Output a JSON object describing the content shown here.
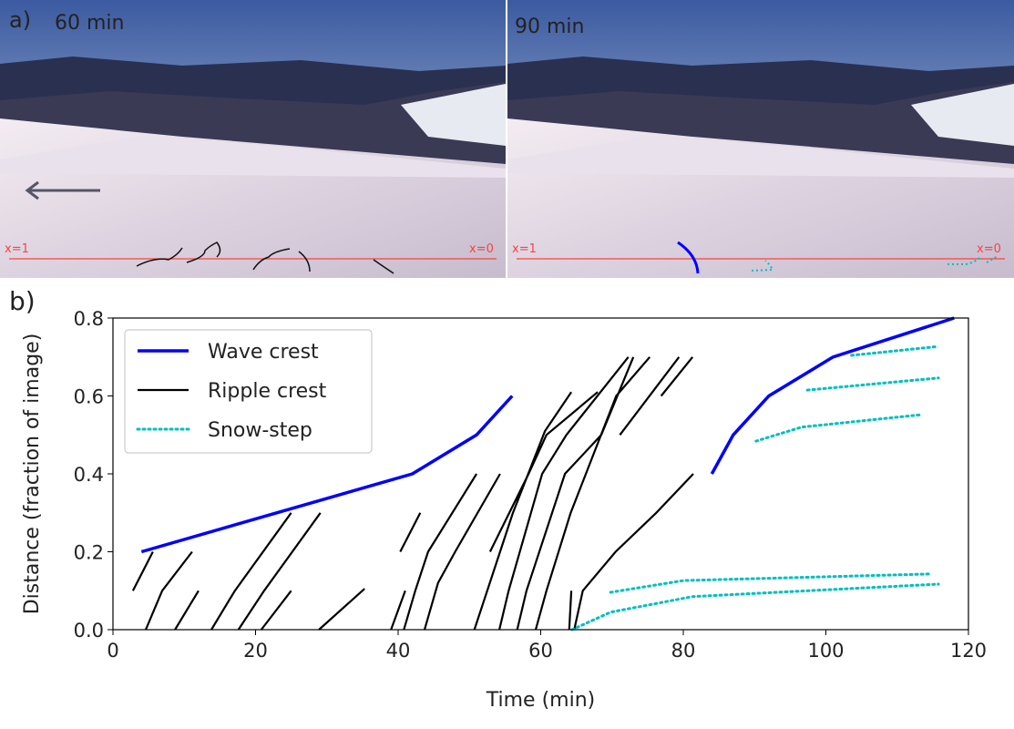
{
  "photos": {
    "panel_label": "a)",
    "left": {
      "time": "60 min",
      "x_start": "x=1",
      "x_end": "x=0"
    },
    "right": {
      "time": "90 min",
      "x_start": "x=1",
      "x_end": "x=0"
    }
  },
  "chart_data": {
    "type": "line",
    "panel_label": "b)",
    "xlabel": "Time (min)",
    "ylabel": "Distance (fraction of image)",
    "xlim": [
      0,
      120
    ],
    "ylim": [
      0,
      0.8
    ],
    "xticks": [
      0,
      20,
      40,
      60,
      80,
      100,
      120
    ],
    "yticks": [
      {
        "value": 0,
        "label": "0.0"
      },
      0.2,
      0.4,
      0.6,
      0.8
    ],
    "legend": "upper left",
    "series": [
      {
        "name": "Wave crest",
        "color": "#0000ff",
        "style": "solid",
        "x": [
          4,
          42,
          51,
          56,
          null,
          84,
          87,
          92,
          101,
          118
        ],
        "values": [
          0.2,
          0.4,
          0.5,
          0.6,
          null,
          0.4,
          0.5,
          0.6,
          0.7,
          0.8
        ]
      },
      {
        "name": "Ripple crest",
        "color": "#000000",
        "style": "solid",
        "x": [
          2.8,
          5.6,
          null,
          4.6,
          6.9,
          11.1,
          null,
          8.7,
          12.0,
          null,
          13.8,
          17.1,
          25.0,
          null,
          17.6,
          21.2,
          29.1,
          null,
          20.8,
          25.0,
          null,
          28.9,
          35.3,
          null,
          39,
          41,
          null,
          40.3,
          43.1,
          null,
          40.8,
          42.4,
          44.2,
          51,
          null,
          43.7,
          45.6,
          48,
          54.3,
          null,
          50.7,
          54.3,
          56.1,
          60.6,
          64.3,
          null,
          52.9,
          58.3,
          60.8,
          68,
          null,
          54.2,
          55.5,
          60.2,
          63.6,
          72.3,
          null,
          56.7,
          58,
          63.4,
          68.5,
          73,
          null,
          59.3,
          60.8,
          64.2,
          70.6,
          75.3,
          null,
          64,
          64.3,
          null,
          64.7,
          65.9,
          70.5,
          76.2,
          81.4,
          null,
          71.1,
          79.4,
          null,
          76.9,
          81.3
        ],
        "values": [
          0.1,
          0.2,
          null,
          0,
          0.1,
          0.2,
          null,
          0,
          0.1,
          null,
          0,
          0.1,
          0.3,
          null,
          0,
          0.1,
          0.3,
          null,
          0,
          0.1,
          null,
          0,
          0.105,
          null,
          0,
          0.1,
          null,
          0.2,
          0.3,
          null,
          0,
          0.1,
          0.2,
          0.4,
          null,
          0,
          0.12,
          0.2,
          0.4,
          null,
          0,
          0.2,
          0.3,
          0.51,
          0.61,
          null,
          0.2,
          0.4,
          0.5,
          0.61,
          null,
          0,
          0.1,
          0.4,
          0.5,
          0.7,
          null,
          0,
          0.1,
          0.4,
          0.5,
          0.7,
          null,
          0,
          0.1,
          0.3,
          0.6,
          0.7,
          null,
          0,
          0.1,
          null,
          0,
          0.1,
          0.2,
          0.3,
          0.4,
          null,
          0.5,
          0.7,
          null,
          0.6,
          0.7
        ]
      },
      {
        "name": "Snow-step",
        "color": "#00bfbf",
        "style": "dotted",
        "x": [
          64.4,
          69.8,
          81.3,
          115.8,
          null,
          69.8,
          80,
          114.5,
          null,
          90.2,
          96.6,
          113.5,
          null,
          97.4,
          115.8,
          null,
          103.6,
          115.8
        ],
        "values": [
          0,
          0.045,
          0.085,
          0.117,
          null,
          0.096,
          0.126,
          0.143,
          null,
          0.484,
          0.52,
          0.552,
          null,
          0.615,
          0.646,
          null,
          0.704,
          0.727
        ]
      }
    ]
  }
}
